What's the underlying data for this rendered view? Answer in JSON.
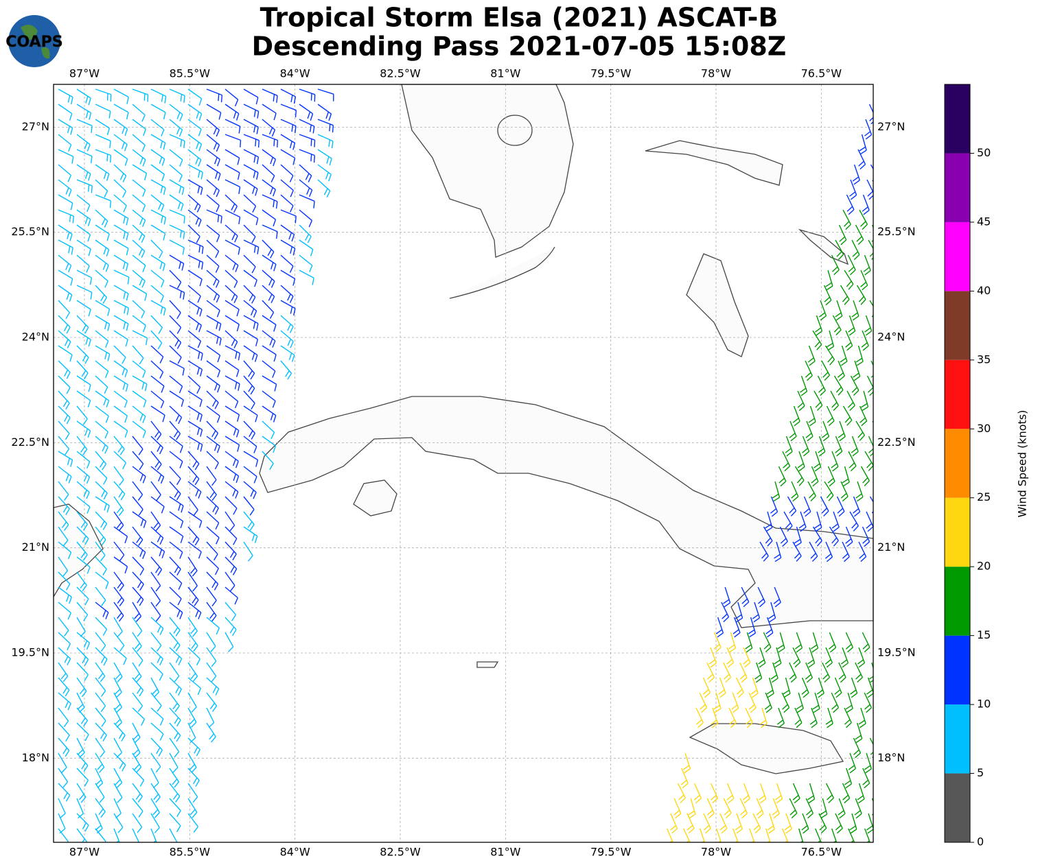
{
  "header": {
    "logo": "COAPS",
    "title_line1": "Tropical Storm Elsa (2021) ASCAT-B",
    "title_line2": "Descending Pass 2021-07-05 15:08Z"
  },
  "chart_data": {
    "type": "map",
    "xlim": [
      -87.44,
      -75.76
    ],
    "ylim": [
      16.8,
      27.61
    ],
    "grid": true,
    "xticks": [
      {
        "value": -87,
        "label": "87°W"
      },
      {
        "value": -85.5,
        "label": "85.5°W"
      },
      {
        "value": -84,
        "label": "84°W"
      },
      {
        "value": -82.5,
        "label": "82.5°W"
      },
      {
        "value": -81,
        "label": "81°W"
      },
      {
        "value": -79.5,
        "label": "79.5°W"
      },
      {
        "value": -78,
        "label": "78°W"
      },
      {
        "value": -76.5,
        "label": "76.5°W"
      }
    ],
    "yticks": [
      {
        "value": 18,
        "label": "18°N"
      },
      {
        "value": 19.5,
        "label": "19.5°N"
      },
      {
        "value": 21,
        "label": "21°N"
      },
      {
        "value": 22.5,
        "label": "22.5°N"
      },
      {
        "value": 24,
        "label": "24°N"
      },
      {
        "value": 25.5,
        "label": "25.5°N"
      },
      {
        "value": 27,
        "label": "27°N"
      }
    ],
    "colorbar": {
      "label": "Wind Speed (knots)",
      "lim": [
        0,
        55
      ],
      "bounds": [
        0,
        5,
        10,
        15,
        20,
        25,
        30,
        35,
        40,
        45,
        50,
        55
      ],
      "colors": [
        "#575757",
        "#00bfff",
        "#0033ff",
        "#009900",
        "#ffd710",
        "#ff8c00",
        "#ff1111",
        "#7f3a28",
        "#ff00ff",
        "#8800b0",
        "#2a0060"
      ],
      "ticks": [
        0,
        5,
        10,
        15,
        20,
        25,
        30,
        35,
        40,
        45,
        50
      ]
    }
  }
}
